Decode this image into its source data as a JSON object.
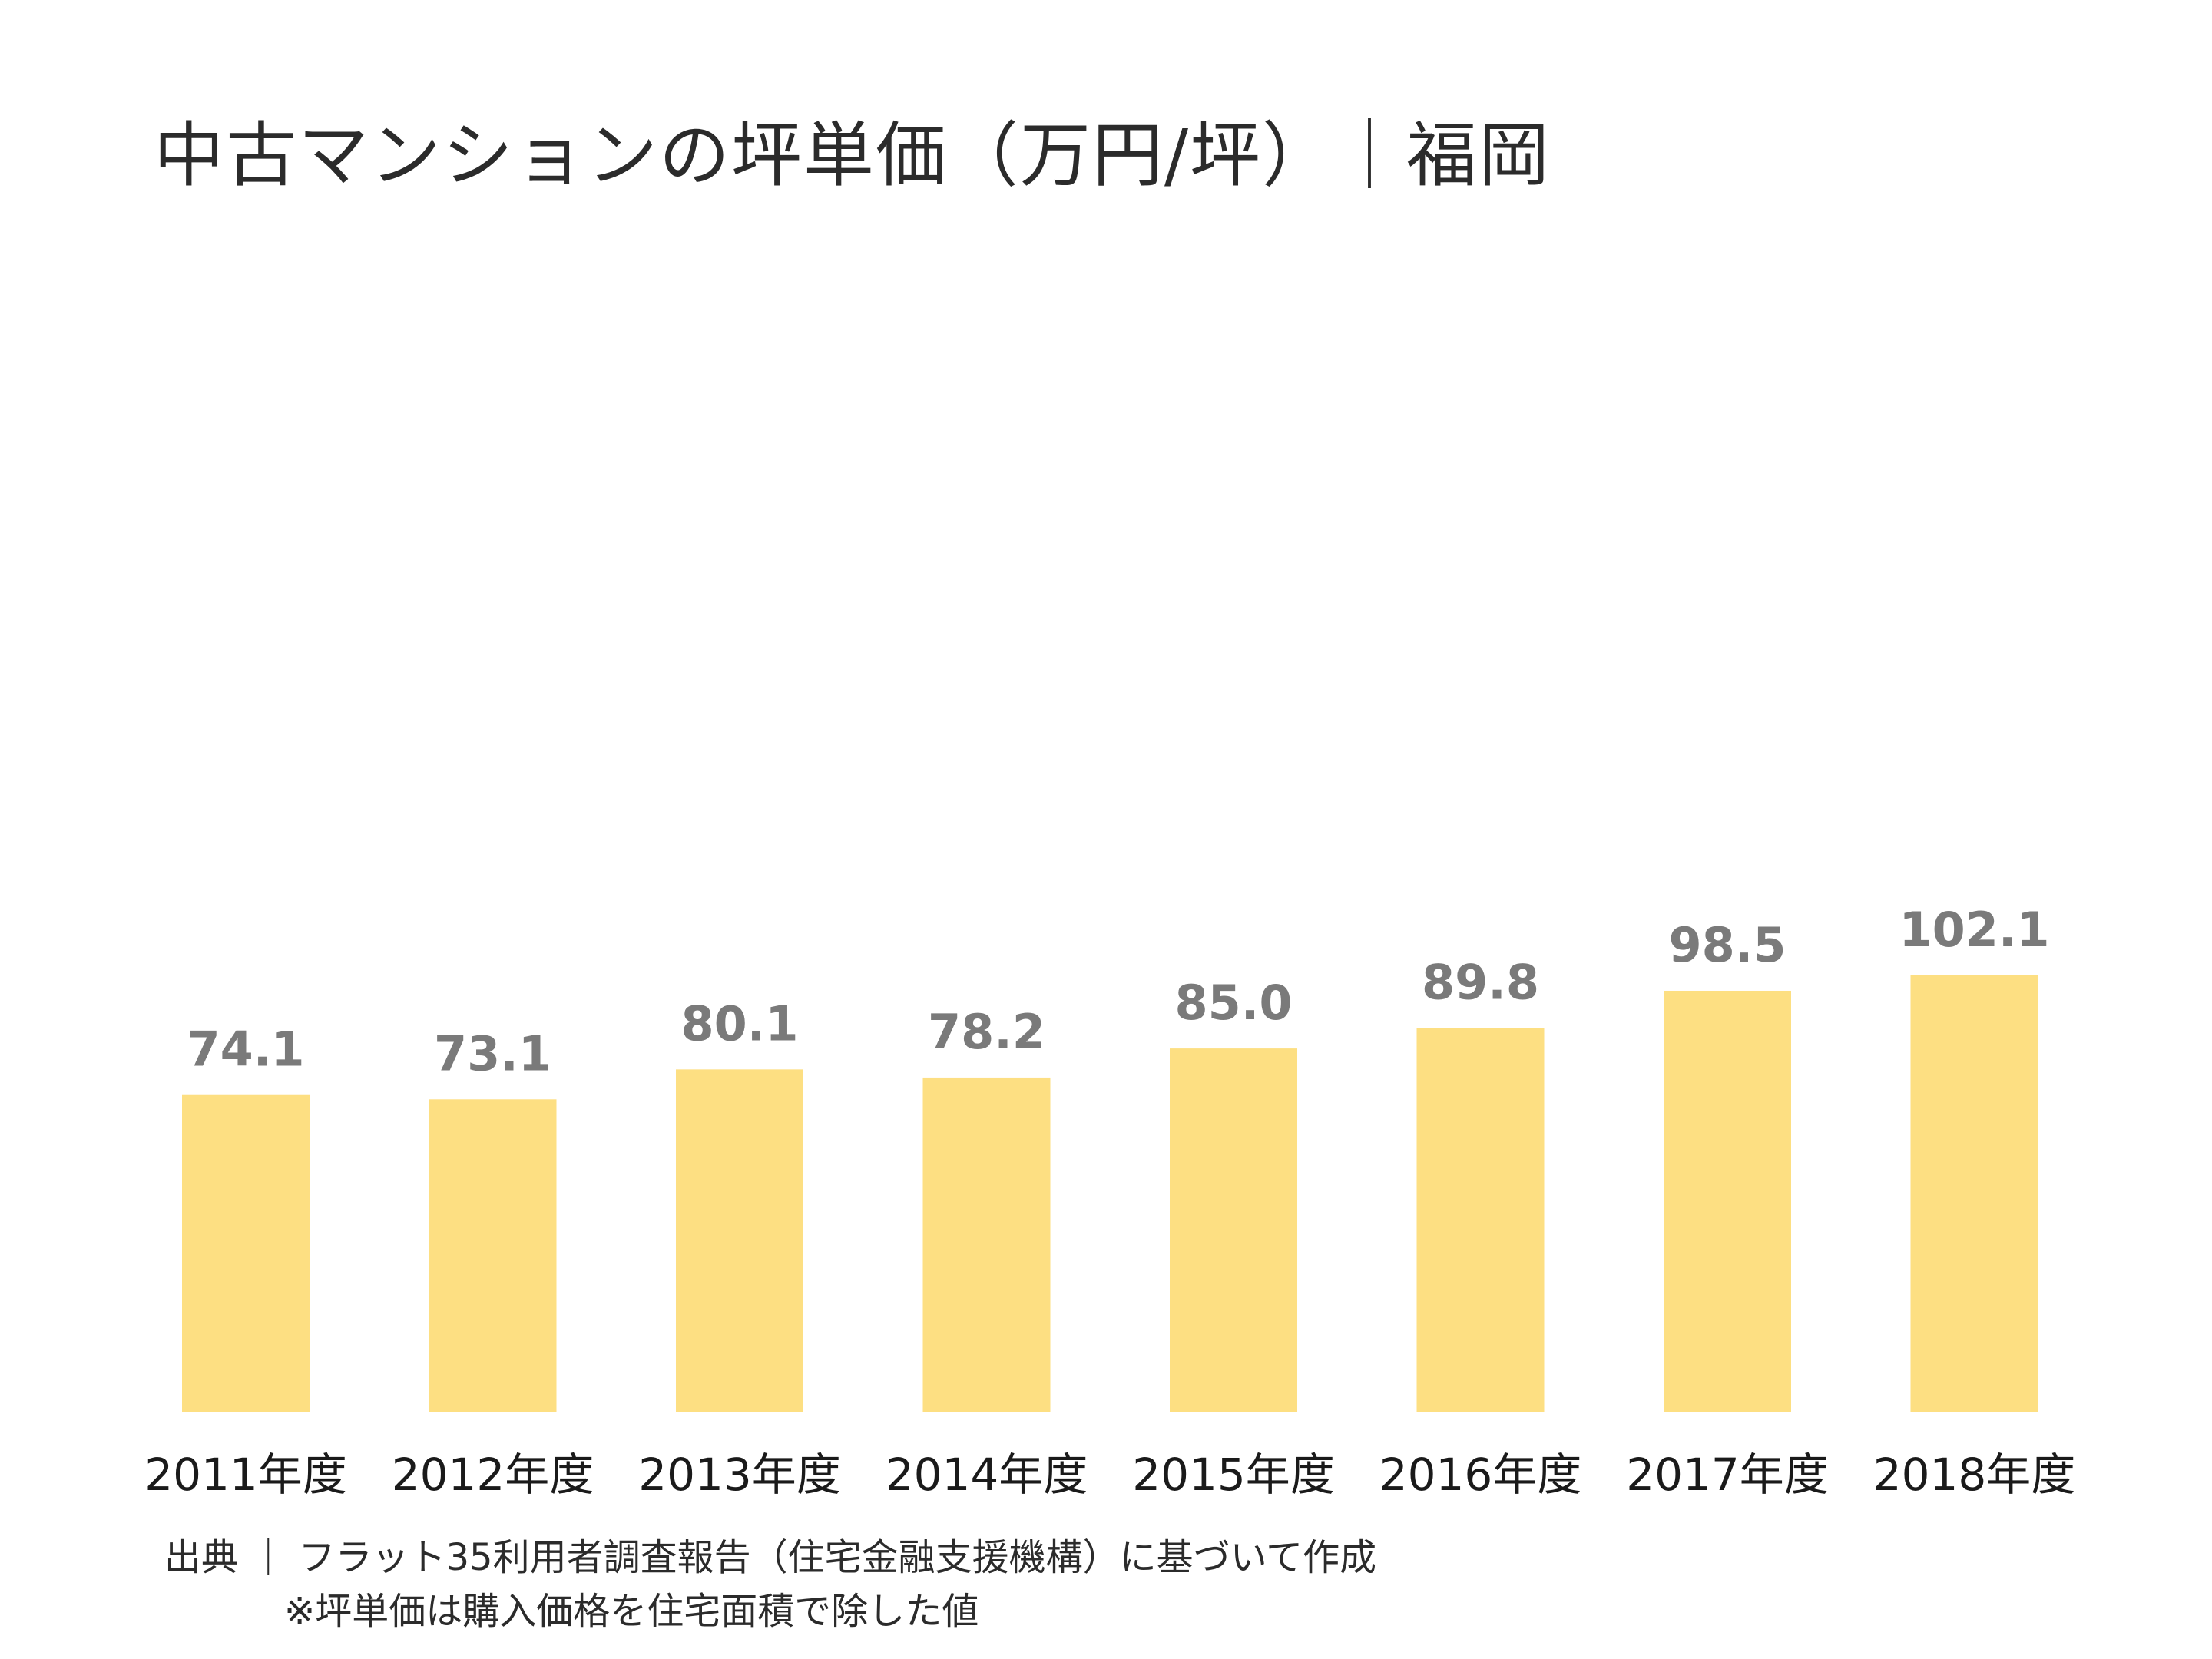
{
  "title": "中古マンションの坪単価（万円/坪）｜福岡",
  "notes": {
    "source": "出典 ｜ フラット35利用者調査報告（住宅金融支援機構）に基づいて作成",
    "footnote": "※坪単価は購入価格を住宅面積で除した値"
  },
  "colors": {
    "bar": "#fddf82",
    "value_label": "#7a7a7a"
  },
  "chart_data": {
    "type": "bar",
    "title": "中古マンションの坪単価（万円/坪）｜福岡",
    "categories": [
      "2011年度",
      "2012年度",
      "2013年度",
      "2014年度",
      "2015年度",
      "2016年度",
      "2017年度",
      "2018年度"
    ],
    "values": [
      74.1,
      73.1,
      80.1,
      78.2,
      85.0,
      89.8,
      98.5,
      102.1
    ],
    "value_labels": [
      "74.1",
      "73.1",
      "80.1",
      "78.2",
      "85.0",
      "89.8",
      "98.5",
      "102.1"
    ],
    "ylim": [
      0,
      275
    ],
    "grid": false,
    "legend": "none"
  }
}
